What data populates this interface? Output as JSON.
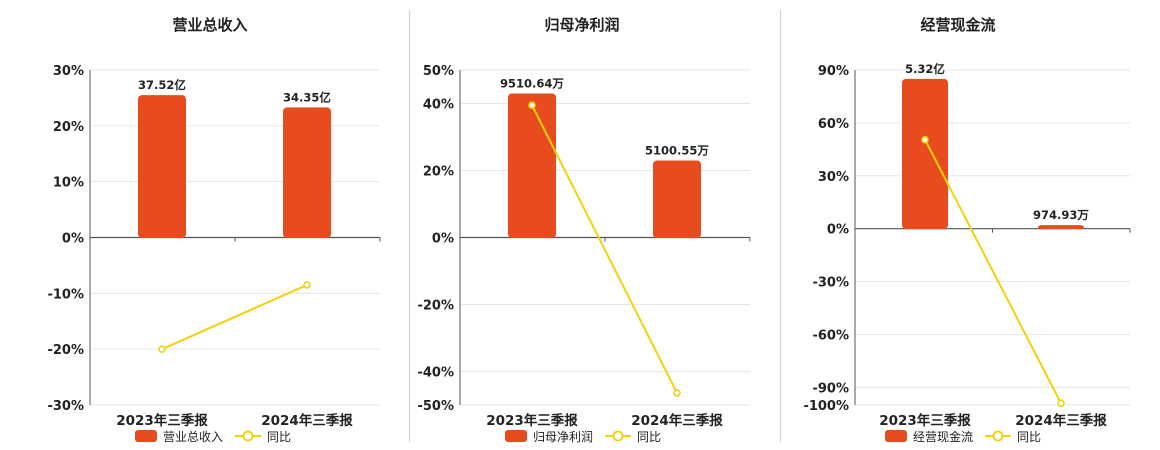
{
  "colors": {
    "bar": "#E84C1E",
    "line": "#F2D20B",
    "grid": "#e6e6e6",
    "axis": "#555555"
  },
  "chart_data": [
    {
      "type": "bar",
      "title": "营业总收入",
      "categories": [
        "2023年三季报",
        "2024年三季报"
      ],
      "series": [
        {
          "name": "营业总收入",
          "type": "bar",
          "values": [
            25.5,
            23.3
          ],
          "labels": [
            "37.52亿",
            "34.35亿"
          ]
        },
        {
          "name": "同比",
          "type": "line",
          "values": [
            -20.0,
            -8.5
          ]
        }
      ],
      "ylim": [
        -30,
        30
      ],
      "yticks": [
        30,
        20,
        10,
        0,
        -10,
        -20,
        -30
      ],
      "ytick_labels": [
        "30%",
        "20%",
        "10%",
        "0%",
        "-10%",
        "-20%",
        "-30%"
      ],
      "grid": true,
      "legend": "bottom"
    },
    {
      "type": "bar",
      "title": "归母净利润",
      "categories": [
        "2023年三季报",
        "2024年三季报"
      ],
      "series": [
        {
          "name": "归母净利润",
          "type": "bar",
          "values": [
            43.0,
            23.0
          ],
          "labels": [
            "9510.64万",
            "5100.55万"
          ]
        },
        {
          "name": "同比",
          "type": "line",
          "values": [
            39.5,
            -46.4
          ]
        }
      ],
      "ylim": [
        -50,
        50
      ],
      "yticks": [
        50,
        40,
        20,
        0,
        -20,
        -40,
        -50
      ],
      "ytick_labels": [
        "50%",
        "40%",
        "20%",
        "0%",
        "-20%",
        "-40%",
        "-50%"
      ],
      "grid": true,
      "legend": "bottom"
    },
    {
      "type": "bar",
      "title": "经营现金流",
      "categories": [
        "2023年三季报",
        "2024年三季报"
      ],
      "series": [
        {
          "name": "经营现金流",
          "type": "bar",
          "values": [
            85.0,
            2.0
          ],
          "labels": [
            "5.32亿",
            "974.93万"
          ]
        },
        {
          "name": "同比",
          "type": "line",
          "values": [
            50.5,
            -99.0
          ]
        }
      ],
      "ylim": [
        -100,
        90
      ],
      "yticks": [
        90,
        60,
        30,
        0,
        -30,
        -60,
        -90,
        -100
      ],
      "ytick_labels": [
        "90%",
        "60%",
        "30%",
        "0%",
        "-30%",
        "-60%",
        "-90%",
        "-100%"
      ],
      "grid": true,
      "legend": "bottom"
    }
  ]
}
